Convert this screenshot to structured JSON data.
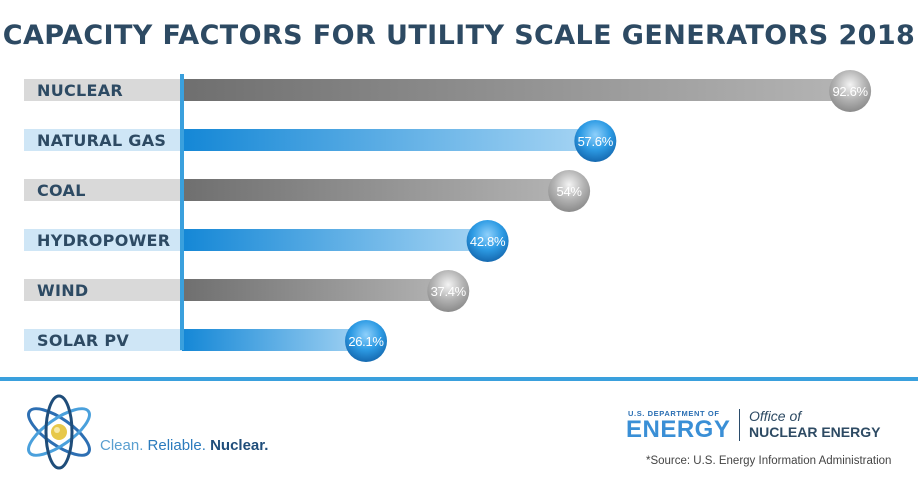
{
  "chart_data": {
    "type": "bar",
    "orientation": "horizontal",
    "title": "CAPACITY FACTORS FOR UTILITY SCALE GENERATORS 2018",
    "categories": [
      "NUCLEAR",
      "NATURAL GAS",
      "COAL",
      "HYDROPOWER",
      "WIND",
      "SOLAR PV"
    ],
    "values": [
      92.6,
      57.6,
      54,
      42.8,
      37.4,
      26.1
    ],
    "value_labels": [
      "92.6%",
      "57.6%",
      "54%",
      "42.8%",
      "37.4%",
      "26.1%"
    ],
    "unit": "%",
    "xlim": [
      0,
      100
    ],
    "grid": false,
    "legend": "none",
    "bar_styles": [
      "gray",
      "blue",
      "gray",
      "blue",
      "gray",
      "blue"
    ]
  },
  "colors": {
    "title": "#2d4a63",
    "axis_line": "#3aa0dd",
    "gray_bar": "#8a8a8a",
    "gray_label_bg": "#d9d9d9",
    "blue_bar": "#2f95dd",
    "blue_label_bg": "#cfe6f6"
  },
  "footer": {
    "tagline_1": "Clean.",
    "tagline_2": "Reliable.",
    "tagline_3": "Nuclear.",
    "doe_small": "U.S. DEPARTMENT OF",
    "doe_big": "ENERGY",
    "office_line1": "Office of",
    "office_line2": "NUCLEAR ENERGY",
    "source": "*Source: U.S. Energy Information Administration"
  },
  "icons": {
    "logo": "atom-logo-icon"
  }
}
